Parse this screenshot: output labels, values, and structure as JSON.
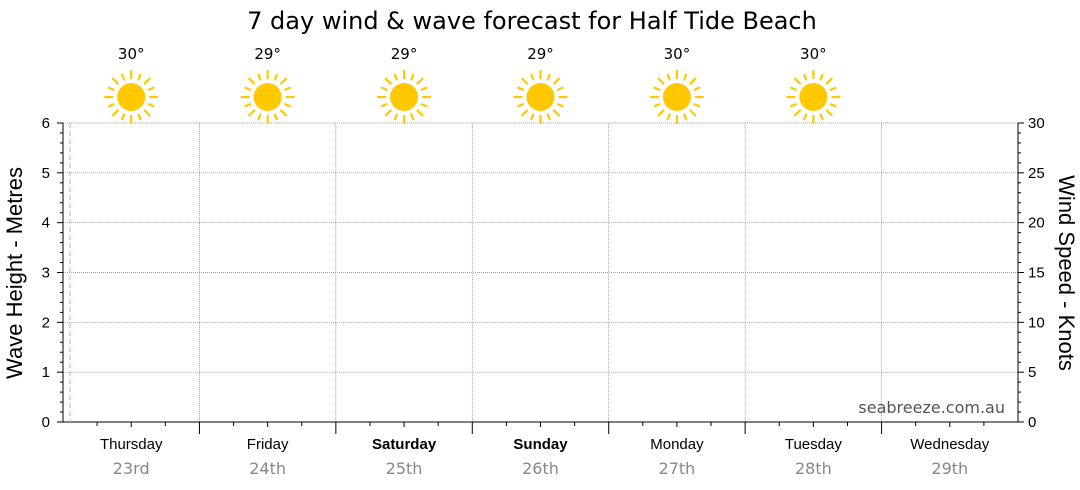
{
  "chart_data": {
    "type": "line",
    "title": "7 day wind & wave forecast for Half Tide Beach",
    "ylabel_left": "Wave Height - Metres",
    "ylabel_right": "Wind Speed - Knots",
    "ylim_left": [
      0,
      6
    ],
    "ylim_right": [
      0,
      30
    ],
    "yticks_left": [
      "0",
      "1",
      "2",
      "3",
      "4",
      "5",
      "6"
    ],
    "yticks_right": [
      "0",
      "5",
      "10",
      "15",
      "20",
      "25",
      "30"
    ],
    "grid": true,
    "days": [
      {
        "name": "Thursday",
        "date": "23rd",
        "bold": false,
        "temp": "30°",
        "icon": "sun-icon"
      },
      {
        "name": "Friday",
        "date": "24th",
        "bold": false,
        "temp": "29°",
        "icon": "sun-icon"
      },
      {
        "name": "Saturday",
        "date": "25th",
        "bold": true,
        "temp": "29°",
        "icon": "sun-icon"
      },
      {
        "name": "Sunday",
        "date": "26th",
        "bold": true,
        "temp": "29°",
        "icon": "sun-icon"
      },
      {
        "name": "Monday",
        "date": "27th",
        "bold": false,
        "temp": "30°",
        "icon": "sun-icon"
      },
      {
        "name": "Tuesday",
        "date": "28th",
        "bold": false,
        "temp": "30°",
        "icon": "sun-icon"
      },
      {
        "name": "Wednesday",
        "date": "29th",
        "bold": false,
        "temp": null,
        "icon": null
      }
    ],
    "series": []
  },
  "watermark": "seabreeze.com.au",
  "colors": {
    "sun": "#FFC800",
    "now_line": "#F4A0A0",
    "grid": "#888888",
    "date_text": "#888888"
  }
}
